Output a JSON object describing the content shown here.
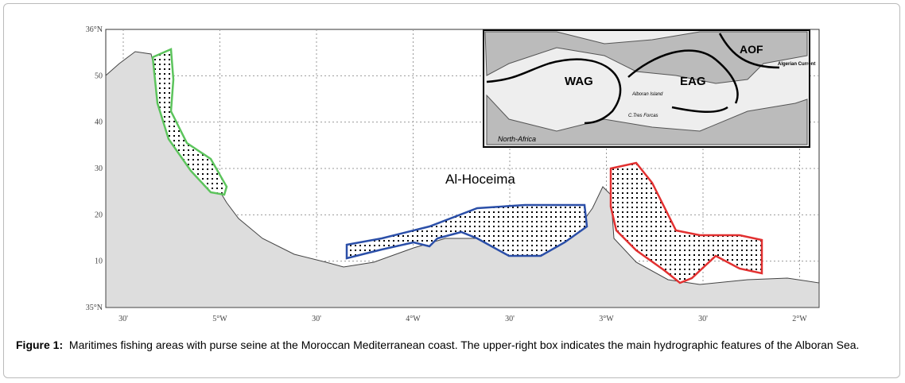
{
  "map": {
    "lat_labels": [
      "36°N",
      "50",
      "40",
      "30",
      "20",
      "10",
      "35°N"
    ],
    "lon_labels": [
      "30'",
      "5°W",
      "30'",
      "4°W",
      "30'",
      "3°W",
      "30'",
      "2°W"
    ],
    "place": "Al-Hoceima",
    "inset": {
      "labels": [
        "WAG",
        "EAG",
        "AOF",
        "Algerian Current",
        "Alboran Island",
        "C.Tres Forcas",
        "North-Africa"
      ]
    }
  },
  "caption": {
    "label": "Figure 1:",
    "text": "Maritimes fishing areas with purse seine at the Moroccan  Mediterranean coast. The upper-right box indicates the main hydrographic features of the Alboran Sea."
  }
}
